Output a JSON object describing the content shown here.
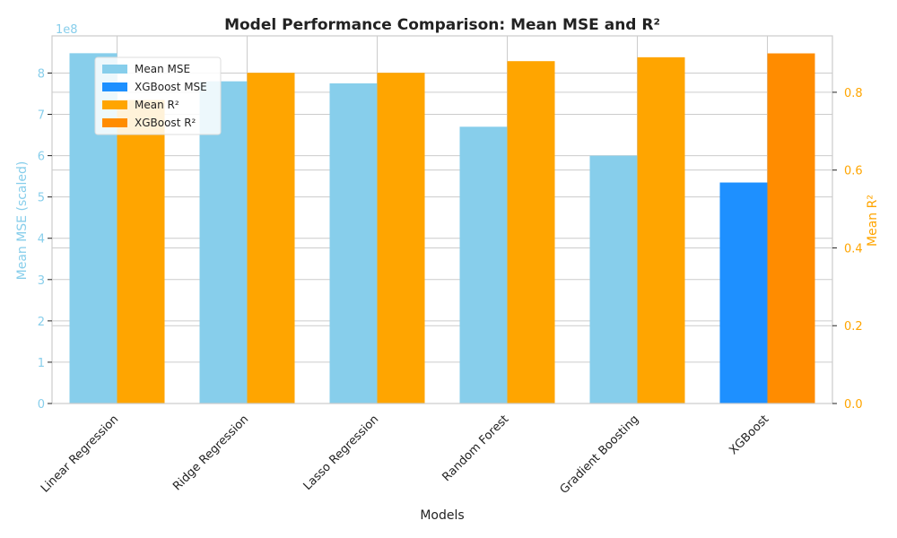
{
  "chart_data": {
    "type": "bar",
    "title": "Model Performance Comparison: Mean MSE and R²",
    "xlabel": "Models",
    "ylabel_left": "Mean MSE (scaled)",
    "ylabel_right": "Mean R²",
    "left_axis_multiplier": "1e8",
    "categories": [
      "Linear Regression",
      "Ridge Regression",
      "Lasso Regression",
      "Random Forest",
      "Gradient Boosting",
      "XGBoost"
    ],
    "ylim_left": [
      0,
      8.9
    ],
    "ylim_right": [
      0,
      0.945
    ],
    "yticks_left": [
      "0",
      "1",
      "2",
      "3",
      "4",
      "5",
      "6",
      "7",
      "8"
    ],
    "yticks_right": [
      "0.0",
      "0.2",
      "0.4",
      "0.6",
      "0.8"
    ],
    "series": [
      {
        "name": "Mean MSE",
        "axis": "left",
        "color": "#87CEEB",
        "values": [
          8.48,
          7.8,
          7.75,
          6.7,
          6.0,
          null
        ]
      },
      {
        "name": "XGBoost MSE",
        "axis": "left",
        "color": "#1E90FF",
        "values": [
          null,
          null,
          null,
          null,
          null,
          5.35
        ]
      },
      {
        "name": "Mean R²",
        "axis": "right",
        "color": "#FFA500",
        "values": [
          0.78,
          0.85,
          0.85,
          0.88,
          0.89,
          null
        ]
      },
      {
        "name": "XGBoost R²",
        "axis": "right",
        "color": "#FF8C00",
        "values": [
          null,
          null,
          null,
          null,
          null,
          0.9
        ]
      }
    ],
    "legend_position": "top-left",
    "grid": true,
    "left_axis_color": "#87CEEB",
    "right_axis_color": "#FFA500"
  }
}
